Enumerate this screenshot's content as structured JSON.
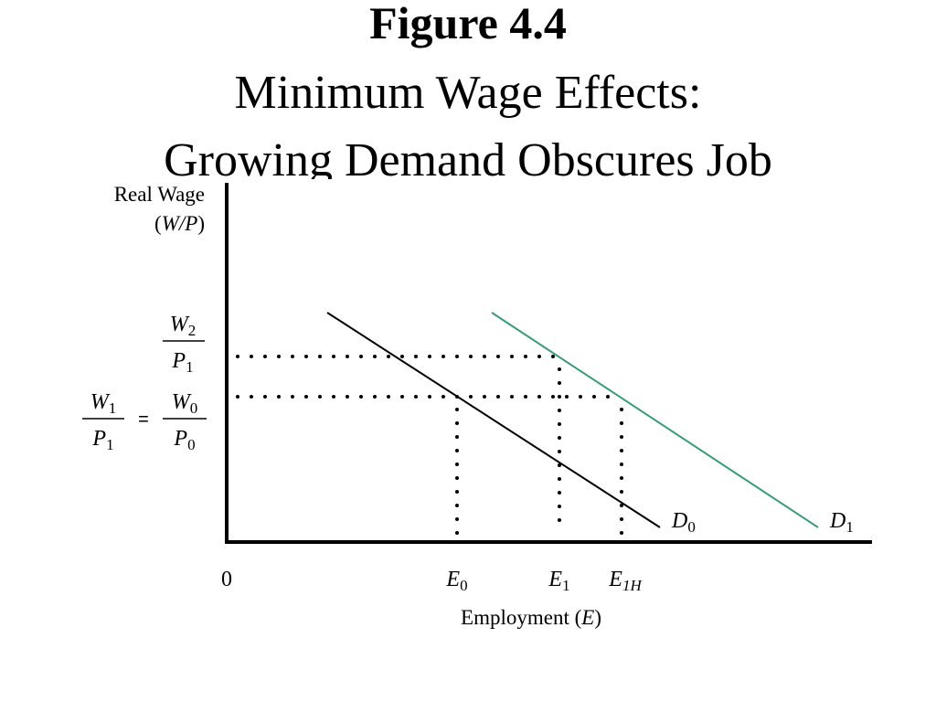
{
  "header": {
    "title": "Figure 4.4",
    "subtitle_lines": [
      "Minimum Wage Effects:",
      "Growing Demand Obscures Job"
    ]
  },
  "y_axis": {
    "label_lines": [
      "Real Wage",
      "(",
      "W/P",
      ")"
    ],
    "upper_level": {
      "num": {
        "base": "W",
        "sub": "2"
      },
      "den": {
        "base": "P",
        "sub": "1"
      }
    },
    "lower_level": {
      "left": {
        "num": {
          "base": "W",
          "sub": "1"
        },
        "den": {
          "base": "P",
          "sub": "1"
        }
      },
      "equals": "=",
      "right": {
        "num": {
          "base": "W",
          "sub": "0"
        },
        "den": {
          "base": "P",
          "sub": "0"
        }
      }
    }
  },
  "x_axis": {
    "origin": "0",
    "label_parts": [
      "Employment (",
      "E",
      ")"
    ],
    "ticks": [
      {
        "base": "E",
        "sub": "0"
      },
      {
        "base": "E",
        "sub": "1"
      },
      {
        "base": "E",
        "sub": "1H"
      }
    ]
  },
  "curves": [
    {
      "base": "D",
      "sub": "0"
    },
    {
      "base": "D",
      "sub": "1"
    }
  ]
}
